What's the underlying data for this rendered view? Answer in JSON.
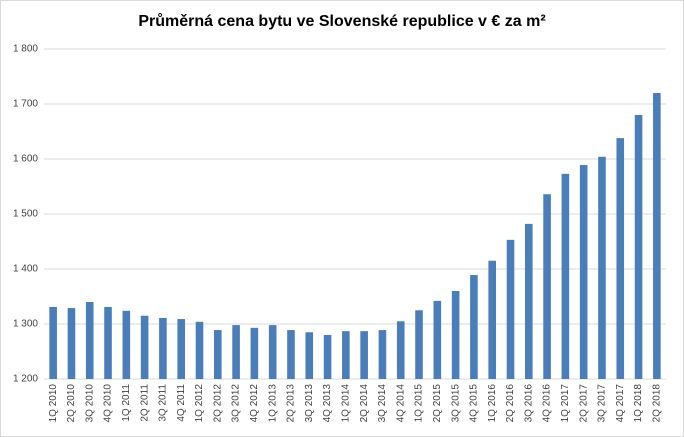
{
  "chart_data": {
    "type": "bar",
    "title": "Průměrná cena bytu ve Slovenské republice v € za m²",
    "categories": [
      "1Q 2010",
      "2Q 2010",
      "3Q 2010",
      "4Q 2010",
      "1Q 2011",
      "2Q 2011",
      "3Q 2011",
      "4Q 2011",
      "1Q 2012",
      "2Q 2012",
      "3Q 2012",
      "4Q 2012",
      "1Q 2013",
      "2Q 2013",
      "3Q 2013",
      "4Q 2013",
      "1Q 2014",
      "2Q 2014",
      "3Q 2014",
      "4Q 2014",
      "1Q 2015",
      "2Q 2015",
      "3Q 2015",
      "4Q 2015",
      "1Q 2016",
      "2Q 2016",
      "3Q 2016",
      "4Q 2016",
      "1Q 2017",
      "2Q 2017",
      "3Q 2017",
      "4Q 2017",
      "1Q 2018",
      "2Q 2018"
    ],
    "values": [
      1331,
      1329,
      1340,
      1331,
      1324,
      1315,
      1311,
      1309,
      1304,
      1289,
      1298,
      1293,
      1298,
      1289,
      1285,
      1280,
      1287,
      1287,
      1289,
      1305,
      1325,
      1342,
      1360,
      1389,
      1415,
      1453,
      1482,
      1536,
      1573,
      1589,
      1604,
      1638,
      1680,
      1720
    ],
    "color": "#4a7ebb",
    "ylim": [
      1200,
      1800
    ],
    "yticks": [
      {
        "value": 1200,
        "label": "1 200"
      },
      {
        "value": 1300,
        "label": "1 300"
      },
      {
        "value": 1400,
        "label": "1 400"
      },
      {
        "value": 1500,
        "label": "1 500"
      },
      {
        "value": 1600,
        "label": "1 600"
      },
      {
        "value": 1700,
        "label": "1 700"
      },
      {
        "value": 1800,
        "label": "1 800"
      }
    ],
    "grid": true
  }
}
